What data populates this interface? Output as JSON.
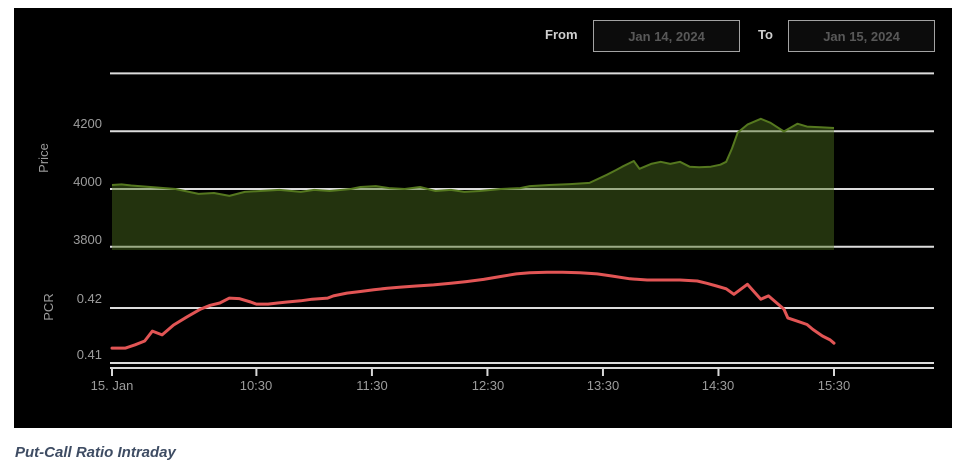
{
  "range_selector": {
    "from_label": "From",
    "from_value": "Jan 14, 2024",
    "to_label": "To",
    "to_value": "Jan 15, 2024"
  },
  "price_axis": {
    "title": "Price",
    "ticks": [
      "4200",
      "4000",
      "3800"
    ]
  },
  "pcr_axis": {
    "title": "PCR",
    "ticks": [
      "0.42",
      "0.41"
    ]
  },
  "x_axis": {
    "ticks": [
      "15. Jan",
      "10:30",
      "11:30",
      "12:30",
      "13:30",
      "14:30",
      "15:30"
    ]
  },
  "caption": {
    "text": "Put-Call Ratio Intraday"
  },
  "colors": {
    "panel_bg": "#000000",
    "gridline": "#dcdcdc",
    "axis_line": "#d9d9d9",
    "tick_text": "#9c9c9c",
    "price_line": "#55781f",
    "price_fill": "#4d7020",
    "pcr_line": "#e25555",
    "caption_text": "#3e4c63"
  },
  "chart_data": [
    {
      "type": "area",
      "name": "Price",
      "ylabel": "Price",
      "color": "#55781f",
      "fill": "#4d7020",
      "fill_opacity": 0.45,
      "ylim": [
        3800,
        4400
      ],
      "ytick_values": [
        4400,
        4200,
        4000,
        3800
      ],
      "x_axis_note": "minutes after 09:15, 15-Jan-2024; data ends 15:30",
      "x_minutes": [
        0,
        5,
        10,
        20,
        33,
        45,
        53,
        61,
        69,
        77,
        87,
        98,
        105,
        113,
        124,
        129,
        137,
        144,
        152,
        160,
        168,
        176,
        183,
        191,
        202,
        212,
        217,
        227,
        238,
        248,
        257,
        262,
        265,
        271,
        274,
        280,
        285,
        290,
        295,
        300,
        305,
        311,
        316,
        319,
        322,
        325,
        330,
        337,
        342,
        349,
        356,
        361,
        368,
        375
      ],
      "values": [
        4014,
        4016,
        4012,
        4007,
        4000,
        3983,
        3986,
        3976,
        3990,
        3993,
        3997,
        3990,
        3997,
        3993,
        4000,
        4007,
        4010,
        4003,
        4000,
        4007,
        3993,
        3997,
        3990,
        3993,
        4000,
        4003,
        4010,
        4014,
        4017,
        4021,
        4049,
        4066,
        4077,
        4097,
        4070,
        4087,
        4094,
        4087,
        4094,
        4077,
        4075,
        4077,
        4084,
        4094,
        4140,
        4195,
        4223,
        4243,
        4229,
        4199,
        4226,
        4216,
        4214,
        4211
      ]
    },
    {
      "type": "line",
      "name": "PCR",
      "ylabel": "PCR",
      "color": "#e25555",
      "ylim": [
        0.409,
        0.427
      ],
      "ytick_values": [
        0.42,
        0.41
      ],
      "x_axis_note": "minutes after 09:15, 15-Jan-2024; data ends 15:30",
      "x_minutes": [
        0,
        7,
        12,
        17,
        21,
        26,
        32,
        39,
        46,
        51,
        56,
        61,
        66,
        72,
        75,
        81,
        86,
        91,
        98,
        104,
        112,
        115,
        122,
        129,
        136,
        143,
        150,
        158,
        167,
        176,
        184,
        193,
        203,
        210,
        217,
        226,
        234,
        243,
        252,
        260,
        269,
        278,
        286,
        295,
        304,
        309,
        314,
        319,
        323,
        330,
        337,
        341,
        345,
        349,
        351,
        356,
        361,
        364,
        369,
        373,
        375
      ],
      "values": [
        0.4127,
        0.4127,
        0.4133,
        0.414,
        0.4158,
        0.4151,
        0.4169,
        0.4184,
        0.4198,
        0.4205,
        0.4209,
        0.4218,
        0.4217,
        0.4211,
        0.4207,
        0.4207,
        0.4209,
        0.4211,
        0.4213,
        0.4216,
        0.4218,
        0.4222,
        0.4227,
        0.423,
        0.4233,
        0.4236,
        0.4238,
        0.424,
        0.4242,
        0.4245,
        0.4248,
        0.4252,
        0.4258,
        0.4262,
        0.4264,
        0.4265,
        0.4265,
        0.4264,
        0.4262,
        0.4258,
        0.4253,
        0.4251,
        0.4251,
        0.4251,
        0.4249,
        0.4245,
        0.424,
        0.4235,
        0.4225,
        0.4243,
        0.4216,
        0.4222,
        0.421,
        0.4198,
        0.4182,
        0.4176,
        0.417,
        0.4161,
        0.4149,
        0.4142,
        0.4136
      ]
    }
  ],
  "x_tick_minutes": [
    0,
    75,
    135,
    195,
    255,
    315,
    375
  ]
}
